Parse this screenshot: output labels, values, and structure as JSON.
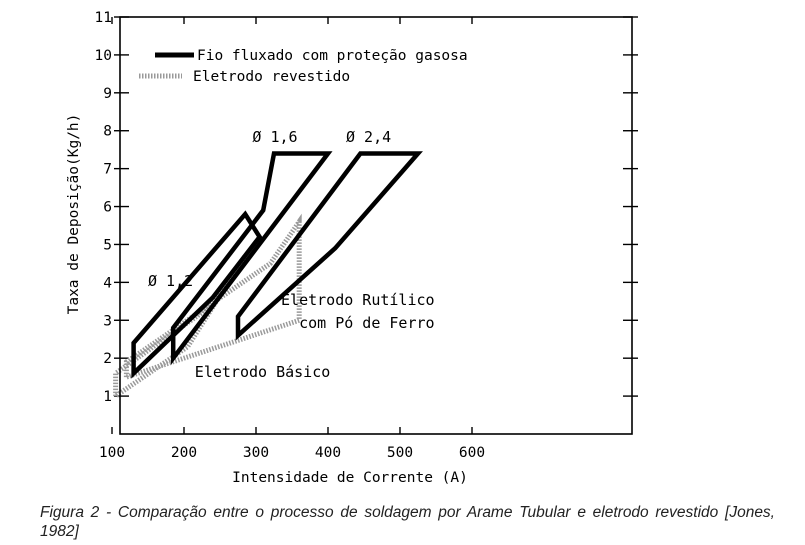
{
  "chart_data": {
    "type": "area",
    "xlabel": "Intensidade de Corrente (A)",
    "ylabel": "Taxa de Deposição(Kg/h)",
    "xlim": [
      0,
      700
    ],
    "ylim": [
      0,
      11
    ],
    "xticks": [
      100,
      200,
      300,
      400,
      500,
      600
    ],
    "yticks": [
      1,
      2,
      3,
      4,
      5,
      6,
      7,
      8,
      9,
      10,
      11
    ],
    "legend": [
      {
        "name": "Fio fluxado com proteção gasosa",
        "style": "solid-black"
      },
      {
        "name": "Eletrodo revestido",
        "style": "dotted-gray"
      }
    ],
    "series": [
      {
        "name": "Ø 1,2",
        "group": "Fio fluxado com proteção gasosa",
        "points": [
          [
            130,
            1.6
          ],
          [
            130,
            2.4
          ],
          [
            285,
            5.8
          ],
          [
            305,
            5.2
          ],
          [
            240,
            3.6
          ],
          [
            130,
            1.6
          ]
        ]
      },
      {
        "name": "Ø 1,6",
        "group": "Fio fluxado com proteção gasosa",
        "points": [
          [
            185,
            2.0
          ],
          [
            185,
            2.8
          ],
          [
            310,
            5.9
          ],
          [
            325,
            7.4
          ],
          [
            400,
            7.4
          ],
          [
            185,
            2.0
          ]
        ]
      },
      {
        "name": "Ø 2,4",
        "group": "Fio fluxado com proteção gasosa",
        "points": [
          [
            275,
            2.6
          ],
          [
            275,
            3.1
          ],
          [
            445,
            7.4
          ],
          [
            525,
            7.4
          ],
          [
            410,
            4.9
          ],
          [
            275,
            2.6
          ]
        ]
      },
      {
        "name": "Eletrodo Básico",
        "group": "Eletrodo revestido",
        "points": [
          [
            105,
            1.0
          ],
          [
            105,
            1.6
          ],
          [
            240,
            3.4
          ],
          [
            285,
            4.7
          ],
          [
            205,
            2.3
          ],
          [
            105,
            1.0
          ]
        ]
      },
      {
        "name": "Eletrodo Rutílico com Pó de Ferro",
        "group": "Eletrodo revestido",
        "points": [
          [
            120,
            1.5
          ],
          [
            120,
            1.9
          ],
          [
            320,
            4.5
          ],
          [
            360,
            5.6
          ],
          [
            360,
            3.0
          ],
          [
            120,
            1.5
          ]
        ]
      }
    ],
    "annotations": [
      {
        "text": "Ø 1,2",
        "at": [
          150,
          3.9
        ]
      },
      {
        "text": "Ø 1,6",
        "at": [
          295,
          7.7
        ]
      },
      {
        "text": "Ø 2,4",
        "at": [
          425,
          7.7
        ]
      },
      {
        "text": "Eletrodo Rutílico",
        "at": [
          440,
          3.4
        ]
      },
      {
        "text": "com Pó de Ferro",
        "at": [
          440,
          2.8
        ]
      },
      {
        "text": "Eletrodo Básico",
        "at": [
          215,
          1.5
        ]
      }
    ]
  },
  "caption": "Figura 2 - Comparação entre o processo de soldagem por Arame Tubular e eletrodo revestido [Jones, 1982]"
}
